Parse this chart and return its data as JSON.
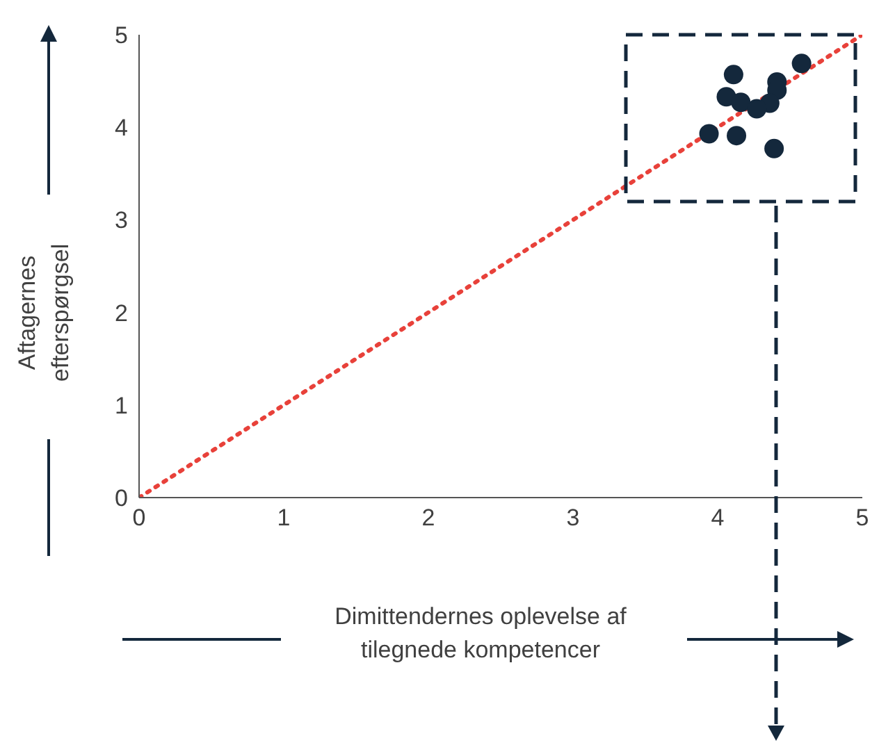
{
  "chart_data": {
    "type": "scatter",
    "xlabel": "Dimittendernes oplevelse af tilegnede kompetencer",
    "ylabel": "Aftagernes efterspørgsel",
    "xlim": [
      0,
      5
    ],
    "ylim": [
      0,
      5
    ],
    "xticks": [
      0,
      1,
      2,
      3,
      4,
      5
    ],
    "yticks": [
      0,
      1,
      2,
      3,
      4,
      5
    ],
    "grid": false,
    "legend": false,
    "series": [
      {
        "type": "scatter",
        "color": "#14283c",
        "marker": "circle",
        "x": [
          4.58,
          4.11,
          4.41,
          4.41,
          4.06,
          4.16,
          4.36,
          4.27,
          3.94,
          4.13,
          4.39
        ],
        "values": [
          4.69,
          4.57,
          4.49,
          4.4,
          4.33,
          4.27,
          4.26,
          4.2,
          3.93,
          3.91,
          3.77
        ]
      },
      {
        "type": "line",
        "color": "#e8413a",
        "line_style": "dotted",
        "marker": "none",
        "x": [
          0,
          5
        ],
        "values": [
          0,
          5
        ]
      }
    ]
  }
}
